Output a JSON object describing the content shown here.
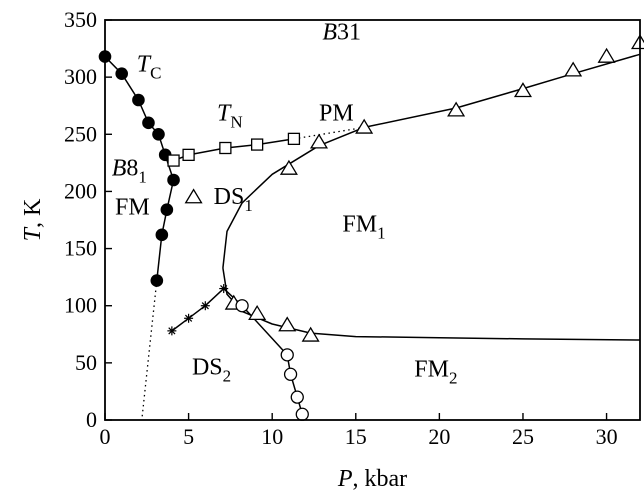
{
  "chart_data": {
    "type": "scatter",
    "xlabel": "P, kbar",
    "ylabel": "T, K",
    "xlim": [
      0,
      32
    ],
    "ylim": [
      0,
      350
    ],
    "xticks": [
      0,
      5,
      10,
      15,
      20,
      25,
      30
    ],
    "yticks": [
      0,
      50,
      100,
      150,
      200,
      250,
      300,
      350
    ],
    "grid": false,
    "series": [
      {
        "name": "T_C",
        "marker": "filled-circle",
        "points": [
          [
            0,
            318
          ],
          [
            1,
            303
          ],
          [
            2,
            280
          ],
          [
            2.6,
            260
          ],
          [
            3.2,
            250
          ],
          [
            3.6,
            232
          ],
          [
            4.1,
            210
          ],
          [
            3.7,
            184
          ],
          [
            3.4,
            162
          ],
          [
            3.1,
            122
          ]
        ]
      },
      {
        "name": "T_N",
        "marker": "open-square",
        "points": [
          [
            4.1,
            227
          ],
          [
            5,
            232
          ],
          [
            7.2,
            238
          ],
          [
            9.1,
            241
          ],
          [
            11.3,
            246
          ]
        ]
      },
      {
        "name": "",
        "marker": "open-triangle",
        "points": [
          [
            7.7,
            102
          ],
          [
            9.1,
            93
          ],
          [
            10.9,
            83
          ],
          [
            12.3,
            74
          ],
          [
            11,
            220
          ],
          [
            12.8,
            243
          ],
          [
            15.5,
            256
          ],
          [
            21,
            271
          ],
          [
            25,
            288
          ],
          [
            28,
            306
          ],
          [
            30,
            318
          ],
          [
            32,
            330
          ],
          [
            5.3,
            195
          ]
        ]
      },
      {
        "name": "",
        "marker": "open-circle",
        "points": [
          [
            8.2,
            100
          ],
          [
            10.9,
            57
          ],
          [
            11.1,
            40
          ],
          [
            11.5,
            20
          ],
          [
            11.8,
            5
          ]
        ]
      },
      {
        "name": "",
        "marker": "star",
        "points": [
          [
            4,
            78
          ],
          [
            5,
            89
          ],
          [
            6,
            100
          ],
          [
            7.1,
            115
          ]
        ]
      }
    ],
    "lines": [
      {
        "id": "tc-curve",
        "style": "solid",
        "points": [
          [
            0,
            318
          ],
          [
            1,
            303
          ],
          [
            2,
            280
          ],
          [
            2.6,
            260
          ],
          [
            3.2,
            250
          ],
          [
            3.6,
            232
          ],
          [
            4.1,
            210
          ],
          [
            3.7,
            184
          ],
          [
            3.4,
            162
          ],
          [
            3.1,
            122
          ]
        ]
      },
      {
        "id": "tc-extension",
        "style": "dotted",
        "points": [
          [
            3.1,
            122
          ],
          [
            2.2,
            0
          ]
        ]
      },
      {
        "id": "tn-curve",
        "style": "solid",
        "points": [
          [
            4.1,
            227
          ],
          [
            5,
            232
          ],
          [
            7.2,
            238
          ],
          [
            9.1,
            241
          ],
          [
            11.3,
            246
          ]
        ]
      },
      {
        "id": "tn-extension",
        "style": "dotted",
        "points": [
          [
            11.3,
            246
          ],
          [
            15.5,
            256
          ]
        ]
      },
      {
        "id": "fm1-upper-boundary",
        "style": "solid",
        "points": [
          [
            7.05,
            133
          ],
          [
            7.3,
            165
          ],
          [
            8.2,
            190
          ],
          [
            10,
            215
          ],
          [
            12.8,
            240
          ],
          [
            15.5,
            256
          ],
          [
            21,
            273
          ],
          [
            25,
            290
          ],
          [
            28,
            303
          ],
          [
            32,
            320
          ]
        ]
      },
      {
        "id": "fm1-lower-boundary",
        "style": "solid",
        "points": [
          [
            7.05,
            133
          ],
          [
            7.3,
            110
          ],
          [
            8.2,
            95
          ],
          [
            10,
            84
          ],
          [
            12.3,
            76
          ],
          [
            15,
            73
          ],
          [
            20,
            72
          ],
          [
            25,
            71
          ],
          [
            32,
            70
          ]
        ]
      },
      {
        "id": "ds2-fm2-boundary",
        "style": "solid",
        "points": [
          [
            7.1,
            115
          ],
          [
            8.2,
            100
          ],
          [
            10.9,
            57
          ],
          [
            11.1,
            40
          ],
          [
            11.5,
            20
          ],
          [
            11.8,
            5
          ],
          [
            11.9,
            0
          ]
        ]
      },
      {
        "id": "star-curve",
        "style": "solid",
        "points": [
          [
            4,
            78
          ],
          [
            5,
            89
          ],
          [
            6,
            100
          ],
          [
            7.1,
            115
          ]
        ]
      }
    ],
    "annotations": [
      {
        "id": "b31",
        "main": "B",
        "rest": "31",
        "sub": "",
        "italic_main": true,
        "x": 13,
        "y": 333
      },
      {
        "id": "tc",
        "main": "T",
        "rest": "",
        "sub": "C",
        "italic_main": true,
        "x": 1.9,
        "y": 305
      },
      {
        "id": "tn",
        "main": "T",
        "rest": "",
        "sub": "N",
        "italic_main": true,
        "x": 6.7,
        "y": 262
      },
      {
        "id": "pm",
        "main": "",
        "rest": "PM",
        "sub": "",
        "italic_main": false,
        "x": 12.8,
        "y": 262
      },
      {
        "id": "b81",
        "main": "B",
        "rest": "8",
        "sub": "1",
        "italic_main": true,
        "x": 0.4,
        "y": 214
      },
      {
        "id": "ds1",
        "main": "",
        "rest": "DS",
        "sub": "1",
        "italic_main": false,
        "x": 6.5,
        "y": 189
      },
      {
        "id": "fm",
        "main": "",
        "rest": "FM",
        "sub": "",
        "italic_main": false,
        "x": 0.6,
        "y": 180
      },
      {
        "id": "fm1",
        "main": "",
        "rest": "FM",
        "sub": "1",
        "italic_main": false,
        "x": 14.2,
        "y": 165
      },
      {
        "id": "ds2",
        "main": "",
        "rest": "DS",
        "sub": "2",
        "italic_main": false,
        "x": 5.2,
        "y": 40
      },
      {
        "id": "fm2",
        "main": "",
        "rest": "FM",
        "sub": "2",
        "italic_main": false,
        "x": 18.5,
        "y": 38
      }
    ]
  }
}
